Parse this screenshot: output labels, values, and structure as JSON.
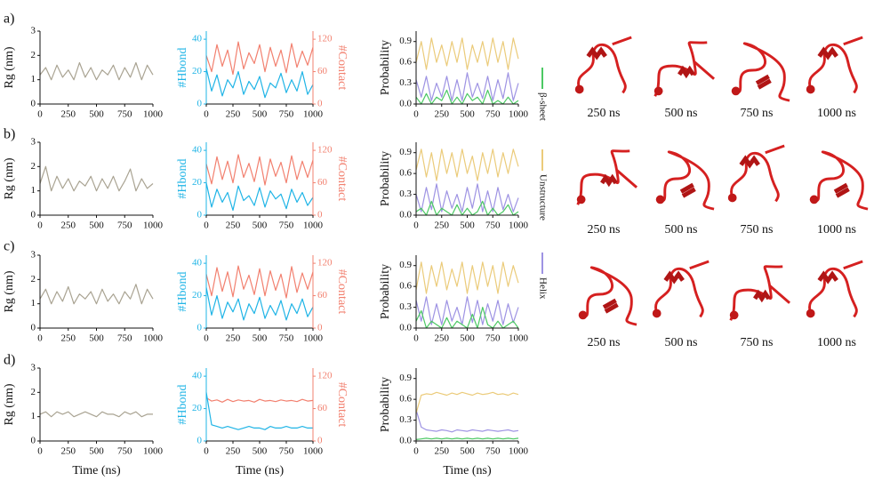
{
  "panels": [
    "a)",
    "b)",
    "c)",
    "d)"
  ],
  "snapshots": [
    [
      "250 ns",
      "500 ns",
      "750 ns",
      "1000 ns"
    ],
    [
      "250 ns",
      "500 ns",
      "750 ns",
      "1000 ns"
    ],
    [
      "250 ns",
      "500 ns",
      "750 ns",
      "1000 ns"
    ]
  ],
  "chart_data": [
    {
      "type": "line",
      "ylabel": "Rg (nm)",
      "x": [
        0,
        50,
        100,
        150,
        200,
        250,
        300,
        350,
        400,
        450,
        500,
        550,
        600,
        650,
        700,
        750,
        800,
        850,
        900,
        950,
        1000
      ],
      "xlim": [
        0,
        1000
      ],
      "xticks": [
        0,
        250,
        500,
        750,
        1000
      ],
      "ylim": [
        0,
        3
      ],
      "yticks": [
        0,
        1,
        2,
        3
      ],
      "series": [
        {
          "color": "#a9a392",
          "values": [
            1.2,
            1.5,
            1.0,
            1.6,
            1.1,
            1.4,
            1.0,
            1.7,
            1.1,
            1.5,
            1.0,
            1.4,
            1.2,
            1.6,
            1.0,
            1.5,
            1.1,
            1.7,
            1.0,
            1.6,
            1.2
          ]
        }
      ]
    },
    {
      "type": "line",
      "ylabel": "#Hbond",
      "y2label": "#Contact",
      "x": [
        0,
        50,
        100,
        150,
        200,
        250,
        300,
        350,
        400,
        450,
        500,
        550,
        600,
        650,
        700,
        750,
        800,
        850,
        900,
        950,
        1000
      ],
      "xlim": [
        0,
        1000
      ],
      "xticks": [
        0,
        250,
        500,
        750,
        1000
      ],
      "ylim": [
        0,
        45
      ],
      "yticks": [
        0,
        20,
        40
      ],
      "y2lim": [
        0,
        135
      ],
      "y2ticks": [
        0,
        60,
        120
      ],
      "series": [
        {
          "color": "#1fb4e6",
          "values": [
            22,
            8,
            18,
            5,
            15,
            10,
            20,
            6,
            14,
            9,
            17,
            4,
            13,
            10,
            19,
            7,
            15,
            8,
            20,
            6,
            12
          ]
        },
        {
          "color": "#f2806f",
          "axis": "y2",
          "values": [
            90,
            60,
            110,
            70,
            100,
            55,
            115,
            65,
            95,
            75,
            110,
            60,
            105,
            70,
            100,
            58,
            112,
            68,
            98,
            72,
            105
          ]
        }
      ]
    },
    {
      "type": "line",
      "ylabel": "Probability",
      "x": [
        0,
        50,
        100,
        150,
        200,
        250,
        300,
        350,
        400,
        450,
        500,
        550,
        600,
        650,
        700,
        750,
        800,
        850,
        900,
        950,
        1000
      ],
      "xlim": [
        0,
        1000
      ],
      "xticks": [
        0,
        250,
        500,
        750,
        1000
      ],
      "ylim": [
        0,
        1.05
      ],
      "yticks": [
        {
          "value": 0,
          "label": "0.0"
        },
        0.3,
        0.6,
        0.9
      ],
      "series": [
        {
          "name": "β-sheet",
          "color": "#4cc964",
          "values": [
            0.1,
            0.0,
            0.15,
            0.0,
            0.1,
            0.05,
            0.2,
            0.0,
            0.1,
            0.0,
            0.15,
            0.05,
            0.1,
            0.0,
            0.2,
            0.0,
            0.05,
            0.0,
            0.1,
            0.0,
            0.05
          ]
        },
        {
          "name": "Unstructure",
          "color": "#ebcb7a",
          "values": [
            0.6,
            0.9,
            0.5,
            0.95,
            0.6,
            0.85,
            0.55,
            0.9,
            0.6,
            0.95,
            0.5,
            0.85,
            0.6,
            0.9,
            0.55,
            0.95,
            0.6,
            0.9,
            0.5,
            0.95,
            0.65
          ]
        },
        {
          "name": "Helix",
          "color": "#9e93e3",
          "values": [
            0.35,
            0.1,
            0.4,
            0.05,
            0.3,
            0.1,
            0.4,
            0.05,
            0.35,
            0.05,
            0.45,
            0.1,
            0.3,
            0.08,
            0.4,
            0.05,
            0.35,
            0.08,
            0.45,
            0.05,
            0.3
          ]
        }
      ]
    },
    {
      "type": "line",
      "ylabel": "Rg (nm)",
      "x": [
        0,
        50,
        100,
        150,
        200,
        250,
        300,
        350,
        400,
        450,
        500,
        550,
        600,
        650,
        700,
        750,
        800,
        850,
        900,
        950,
        1000
      ],
      "xlim": [
        0,
        1000
      ],
      "xticks": [
        0,
        250,
        500,
        750,
        1000
      ],
      "ylim": [
        0,
        3
      ],
      "yticks": [
        0,
        1,
        2,
        3
      ],
      "series": [
        {
          "color": "#a9a392",
          "values": [
            1.3,
            2.0,
            1.0,
            1.6,
            1.1,
            1.5,
            1.0,
            1.4,
            1.2,
            1.6,
            1.0,
            1.5,
            1.1,
            1.6,
            1.0,
            1.4,
            1.9,
            1.0,
            1.5,
            1.1,
            1.3
          ]
        }
      ]
    },
    {
      "type": "line",
      "ylabel": "#Hbond",
      "y2label": "#Contact",
      "x": [
        0,
        50,
        100,
        150,
        200,
        250,
        300,
        350,
        400,
        450,
        500,
        550,
        600,
        650,
        700,
        750,
        800,
        850,
        900,
        950,
        1000
      ],
      "xlim": [
        0,
        1000
      ],
      "xticks": [
        0,
        250,
        500,
        750,
        1000
      ],
      "ylim": [
        0,
        45
      ],
      "yticks": [
        0,
        20,
        40
      ],
      "y2lim": [
        0,
        135
      ],
      "y2ticks": [
        0,
        60,
        120
      ],
      "series": [
        {
          "color": "#1fb4e6",
          "values": [
            20,
            5,
            16,
            8,
            14,
            3,
            18,
            9,
            12,
            6,
            17,
            5,
            15,
            10,
            13,
            4,
            16,
            8,
            14,
            6,
            11
          ]
        },
        {
          "color": "#f2806f",
          "axis": "y2",
          "values": [
            95,
            58,
            108,
            66,
            100,
            60,
            112,
            70,
            96,
            62,
            108,
            56,
            104,
            72,
            98,
            60,
            110,
            66,
            100,
            70,
            102
          ]
        }
      ]
    },
    {
      "type": "line",
      "ylabel": "Probability",
      "x": [
        0,
        50,
        100,
        150,
        200,
        250,
        300,
        350,
        400,
        450,
        500,
        550,
        600,
        650,
        700,
        750,
        800,
        850,
        900,
        950,
        1000
      ],
      "xlim": [
        0,
        1000
      ],
      "xticks": [
        0,
        250,
        500,
        750,
        1000
      ],
      "ylim": [
        0,
        1.05
      ],
      "yticks": [
        {
          "value": 0,
          "label": "0.0"
        },
        0.3,
        0.6,
        0.9
      ],
      "series": [
        {
          "color": "#4cc964",
          "values": [
            0.05,
            0.1,
            0.0,
            0.2,
            0.0,
            0.1,
            0.05,
            0.0,
            0.15,
            0.0,
            0.1,
            0.0,
            0.05,
            0.2,
            0.0,
            0.1,
            0.0,
            0.05,
            0.15,
            0.0,
            0.05
          ]
        },
        {
          "color": "#ebcb7a",
          "values": [
            0.65,
            0.95,
            0.55,
            0.9,
            0.5,
            0.95,
            0.6,
            0.9,
            0.55,
            0.95,
            0.6,
            0.85,
            0.5,
            0.9,
            0.6,
            0.95,
            0.55,
            0.9,
            0.6,
            0.95,
            0.7
          ]
        },
        {
          "color": "#9e93e3",
          "values": [
            0.3,
            0.05,
            0.4,
            0.08,
            0.45,
            0.05,
            0.35,
            0.1,
            0.3,
            0.05,
            0.4,
            0.1,
            0.45,
            0.05,
            0.35,
            0.05,
            0.4,
            0.08,
            0.3,
            0.05,
            0.25
          ]
        }
      ]
    },
    {
      "type": "line",
      "ylabel": "Rg (nm)",
      "x": [
        0,
        50,
        100,
        150,
        200,
        250,
        300,
        350,
        400,
        450,
        500,
        550,
        600,
        650,
        700,
        750,
        800,
        850,
        900,
        950,
        1000
      ],
      "xlim": [
        0,
        1000
      ],
      "xticks": [
        0,
        250,
        500,
        750,
        1000
      ],
      "ylim": [
        0,
        3
      ],
      "yticks": [
        0,
        1,
        2,
        3
      ],
      "series": [
        {
          "color": "#a9a392",
          "values": [
            1.2,
            1.6,
            1.0,
            1.5,
            1.1,
            1.7,
            1.0,
            1.4,
            1.2,
            1.5,
            1.0,
            1.6,
            1.1,
            1.4,
            1.0,
            1.5,
            1.2,
            1.8,
            1.0,
            1.6,
            1.2
          ]
        }
      ]
    },
    {
      "type": "line",
      "ylabel": "#Hbond",
      "y2label": "#Contact",
      "x": [
        0,
        50,
        100,
        150,
        200,
        250,
        300,
        350,
        400,
        450,
        500,
        550,
        600,
        650,
        700,
        750,
        800,
        850,
        900,
        950,
        1000
      ],
      "xlim": [
        0,
        1000
      ],
      "xticks": [
        0,
        250,
        500,
        750,
        1000
      ],
      "ylim": [
        0,
        45
      ],
      "yticks": [
        0,
        20,
        40
      ],
      "y2lim": [
        0,
        135
      ],
      "y2ticks": [
        0,
        60,
        120
      ],
      "series": [
        {
          "color": "#1fb4e6",
          "values": [
            25,
            8,
            20,
            6,
            16,
            10,
            18,
            5,
            15,
            9,
            19,
            6,
            14,
            8,
            17,
            5,
            15,
            9,
            18,
            7,
            13
          ]
        },
        {
          "color": "#f2806f",
          "axis": "y2",
          "values": [
            100,
            60,
            112,
            68,
            104,
            58,
            115,
            72,
            98,
            62,
            110,
            60,
            106,
            70,
            100,
            56,
            114,
            66,
            102,
            72,
            104
          ]
        }
      ]
    },
    {
      "type": "line",
      "ylabel": "Probability",
      "x": [
        0,
        50,
        100,
        150,
        200,
        250,
        300,
        350,
        400,
        450,
        500,
        550,
        600,
        650,
        700,
        750,
        800,
        850,
        900,
        950,
        1000
      ],
      "xlim": [
        0,
        1000
      ],
      "xticks": [
        0,
        250,
        500,
        750,
        1000
      ],
      "ylim": [
        0,
        1.05
      ],
      "yticks": [
        {
          "value": 0,
          "label": "0.0"
        },
        0.3,
        0.6,
        0.9
      ],
      "series": [
        {
          "color": "#4cc964",
          "values": [
            0.1,
            0.25,
            0.0,
            0.1,
            0.05,
            0.0,
            0.15,
            0.0,
            0.1,
            0.05,
            0.0,
            0.2,
            0.0,
            0.3,
            0.05,
            0.0,
            0.1,
            0.0,
            0.05,
            0.1,
            0.0
          ]
        },
        {
          "color": "#ebcb7a",
          "values": [
            0.55,
            0.95,
            0.5,
            0.9,
            0.6,
            0.95,
            0.55,
            0.85,
            0.6,
            0.95,
            0.5,
            0.9,
            0.55,
            0.95,
            0.6,
            0.9,
            0.5,
            0.95,
            0.6,
            0.9,
            0.65
          ]
        },
        {
          "color": "#9e93e3",
          "values": [
            0.4,
            0.1,
            0.45,
            0.05,
            0.35,
            0.05,
            0.4,
            0.1,
            0.3,
            0.05,
            0.45,
            0.08,
            0.4,
            0.05,
            0.35,
            0.1,
            0.4,
            0.05,
            0.35,
            0.08,
            0.3
          ]
        }
      ]
    },
    {
      "type": "line",
      "ylabel": "Rg (nm)",
      "xlabel": "Time (ns)",
      "x": [
        0,
        50,
        100,
        150,
        200,
        250,
        300,
        350,
        400,
        450,
        500,
        550,
        600,
        650,
        700,
        750,
        800,
        850,
        900,
        950,
        1000
      ],
      "xlim": [
        0,
        1000
      ],
      "xticks": [
        0,
        250,
        500,
        750,
        1000
      ],
      "ylim": [
        0,
        3
      ],
      "yticks": [
        0,
        1,
        2,
        3
      ],
      "series": [
        {
          "color": "#a9a392",
          "values": [
            1.1,
            1.2,
            1.0,
            1.2,
            1.1,
            1.2,
            1.0,
            1.1,
            1.2,
            1.1,
            1.0,
            1.2,
            1.1,
            1.1,
            1.0,
            1.2,
            1.1,
            1.2,
            1.0,
            1.1,
            1.1
          ]
        }
      ]
    },
    {
      "type": "line",
      "ylabel": "#Hbond",
      "y2label": "#Contact",
      "xlabel": "Time (ns)",
      "x": [
        0,
        50,
        100,
        150,
        200,
        250,
        300,
        350,
        400,
        450,
        500,
        550,
        600,
        650,
        700,
        750,
        800,
        850,
        900,
        950,
        1000
      ],
      "xlim": [
        0,
        1000
      ],
      "xticks": [
        0,
        250,
        500,
        750,
        1000
      ],
      "ylim": [
        0,
        45
      ],
      "yticks": [
        0,
        20,
        40
      ],
      "y2lim": [
        0,
        135
      ],
      "y2ticks": [
        0,
        60,
        120
      ],
      "series": [
        {
          "color": "#1fb4e6",
          "values": [
            30,
            10,
            9,
            8,
            9,
            8,
            7,
            8,
            9,
            8,
            8,
            7,
            9,
            8,
            8,
            9,
            8,
            8,
            9,
            8,
            8
          ]
        },
        {
          "color": "#f2806f",
          "axis": "y2",
          "values": [
            80,
            74,
            76,
            72,
            77,
            73,
            76,
            74,
            75,
            72,
            77,
            74,
            75,
            73,
            76,
            74,
            75,
            73,
            77,
            74,
            75
          ]
        }
      ]
    },
    {
      "type": "line",
      "ylabel": "Probability",
      "xlabel": "Time (ns)",
      "x": [
        0,
        50,
        100,
        150,
        200,
        250,
        300,
        350,
        400,
        450,
        500,
        550,
        600,
        650,
        700,
        750,
        800,
        850,
        900,
        950,
        1000
      ],
      "xlim": [
        0,
        1000
      ],
      "xticks": [
        0,
        250,
        500,
        750,
        1000
      ],
      "ylim": [
        0,
        1.05
      ],
      "yticks": [
        {
          "value": 0,
          "label": "0.0"
        },
        0.3,
        0.6,
        0.9
      ],
      "series": [
        {
          "color": "#4cc964",
          "values": [
            0.02,
            0.03,
            0.04,
            0.03,
            0.04,
            0.03,
            0.04,
            0.03,
            0.04,
            0.03,
            0.04,
            0.03,
            0.04,
            0.03,
            0.04,
            0.03,
            0.04,
            0.03,
            0.04,
            0.03,
            0.04
          ]
        },
        {
          "color": "#ebcb7a",
          "values": [
            0.4,
            0.66,
            0.68,
            0.67,
            0.7,
            0.68,
            0.66,
            0.69,
            0.67,
            0.7,
            0.68,
            0.66,
            0.69,
            0.67,
            0.68,
            0.7,
            0.67,
            0.68,
            0.66,
            0.69,
            0.67
          ]
        },
        {
          "color": "#9e93e3",
          "values": [
            0.45,
            0.2,
            0.16,
            0.15,
            0.14,
            0.16,
            0.15,
            0.13,
            0.16,
            0.15,
            0.14,
            0.16,
            0.15,
            0.14,
            0.16,
            0.15,
            0.14,
            0.15,
            0.16,
            0.14,
            0.15
          ]
        }
      ]
    }
  ]
}
